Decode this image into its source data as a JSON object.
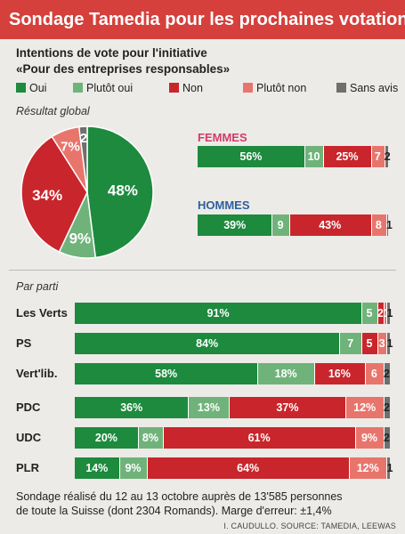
{
  "title": "Sondage Tamedia pour les prochaines votations",
  "question_line1": "Intentions de vote pour l'initiative",
  "question_line2": "«Pour des entreprises responsables»",
  "colors": {
    "oui": "#1d8a3e",
    "plutot_oui": "#6fb37a",
    "non": "#c8262c",
    "plutot_non": "#e8756c",
    "sans_avis": "#6f6f6f",
    "femmes": "#d33a6e",
    "hommes": "#2f5fa0"
  },
  "legend": [
    {
      "label": "Oui",
      "color": "#1d8a3e"
    },
    {
      "label": "Plutôt oui",
      "color": "#6fb37a"
    },
    {
      "label": "Non",
      "color": "#c8262c"
    },
    {
      "label": "Plutôt non",
      "color": "#e8756c"
    },
    {
      "label": "Sans avis",
      "color": "#6f6f6f"
    }
  ],
  "global_label": "Résultat global",
  "femmes_label": "FEMMES",
  "hommes_label": "HOMMES",
  "party_section_label": "Par parti",
  "footnote_line1": "Sondage réalisé du 12 au 13 octobre auprès de 13'585 personnes",
  "footnote_line2": "de toute la Suisse (dont 2304 Romands). Marge d'erreur: ±1,4%",
  "source": "I. CAUDULLO. SOURCE: TAMEDIA, LEEWAS",
  "chart_data": [
    {
      "type": "pie",
      "title": "Résultat global",
      "categories": [
        "Oui",
        "Plutôt oui",
        "Non",
        "Plutôt non",
        "Sans avis"
      ],
      "values": [
        48,
        9,
        34,
        7,
        2
      ],
      "labels": [
        "48%",
        "9%",
        "34%",
        "7%",
        "2"
      ]
    },
    {
      "type": "bar",
      "orientation": "horizontal",
      "stacked": true,
      "categories": [
        "FEMMES",
        "HOMMES"
      ],
      "series": [
        {
          "name": "Oui",
          "values": [
            56,
            39
          ],
          "labels": [
            "56%",
            "39%"
          ]
        },
        {
          "name": "Plutôt oui",
          "values": [
            10,
            9
          ],
          "labels": [
            "10",
            "9"
          ]
        },
        {
          "name": "Non",
          "values": [
            25,
            43
          ],
          "labels": [
            "25%",
            "43%"
          ]
        },
        {
          "name": "Plutôt non",
          "values": [
            7,
            8
          ],
          "labels": [
            "7",
            "8"
          ]
        },
        {
          "name": "Sans avis",
          "values": [
            2,
            1
          ],
          "labels": [
            "2",
            "1"
          ]
        }
      ]
    },
    {
      "type": "bar",
      "orientation": "horizontal",
      "stacked": true,
      "title": "Par parti",
      "categories": [
        "Les Verts",
        "PS",
        "Vert'lib.",
        "PDC",
        "UDC",
        "PLR"
      ],
      "series": [
        {
          "name": "Oui",
          "values": [
            91,
            84,
            58,
            36,
            20,
            14
          ],
          "labels": [
            "91%",
            "84%",
            "58%",
            "36%",
            "20%",
            "14%"
          ]
        },
        {
          "name": "Plutôt oui",
          "values": [
            5,
            7,
            18,
            13,
            8,
            9
          ],
          "labels": [
            "5",
            "7",
            "18%",
            "13%",
            "8%",
            "9%"
          ]
        },
        {
          "name": "Non",
          "values": [
            2,
            5,
            16,
            37,
            61,
            64
          ],
          "labels": [
            "2",
            "5",
            "16%",
            "37%",
            "61%",
            "64%"
          ]
        },
        {
          "name": "Plutôt non",
          "values": [
            1,
            3,
            6,
            12,
            9,
            12
          ],
          "labels": [
            "1",
            "3",
            "6",
            "12%",
            "9%",
            "12%"
          ]
        },
        {
          "name": "Sans avis",
          "values": [
            1,
            1,
            2,
            2,
            2,
            1
          ],
          "labels": [
            "1",
            "1",
            "2",
            "2",
            "2",
            "1"
          ]
        }
      ]
    }
  ]
}
